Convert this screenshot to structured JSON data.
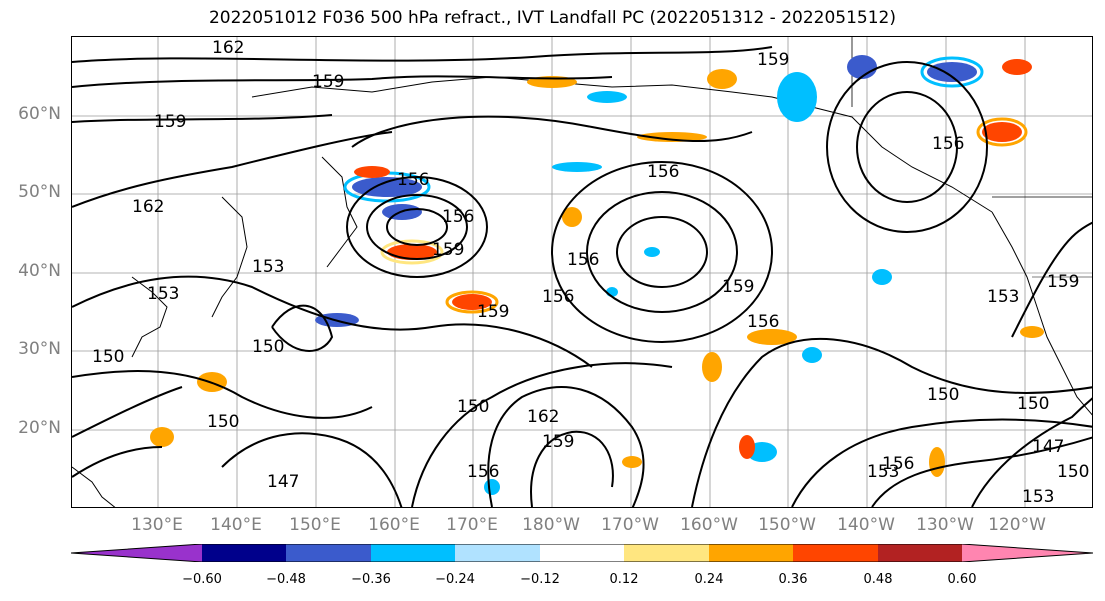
{
  "title": "2022051012 F036 500 hPa refract., IVT Landfall PC (2022051312 - 2022051512)",
  "map": {
    "lat_labels": [
      "60°N",
      "50°N",
      "40°N",
      "30°N",
      "20°N"
    ],
    "lon_labels": [
      "130°E",
      "140°E",
      "150°E",
      "160°E",
      "170°E",
      "180°W",
      "170°W",
      "160°W",
      "150°W",
      "140°W",
      "130°W",
      "120°W"
    ],
    "contour_labels": [
      "162",
      "159",
      "159",
      "159",
      "162",
      "156",
      "156",
      "159",
      "156",
      "156",
      "153",
      "153",
      "150",
      "150",
      "159",
      "156",
      "150",
      "147",
      "150",
      "162",
      "159",
      "156",
      "150",
      "159",
      "156",
      "153",
      "159",
      "153",
      "150",
      "147",
      "150",
      "153",
      "156",
      "156"
    ]
  },
  "colorbar": {
    "ticks": [
      "−0.60",
      "−0.48",
      "−0.36",
      "−0.24",
      "−0.12",
      "0.12",
      "0.24",
      "0.36",
      "0.48",
      "0.60"
    ],
    "colors": [
      "#9932cc",
      "#00008b",
      "#3b5bcc",
      "#00bfff",
      "#b0e2ff",
      "#ffffff",
      "#ffe680",
      "#ffa500",
      "#ff4500",
      "#b22222",
      "#ff85b0"
    ]
  }
}
